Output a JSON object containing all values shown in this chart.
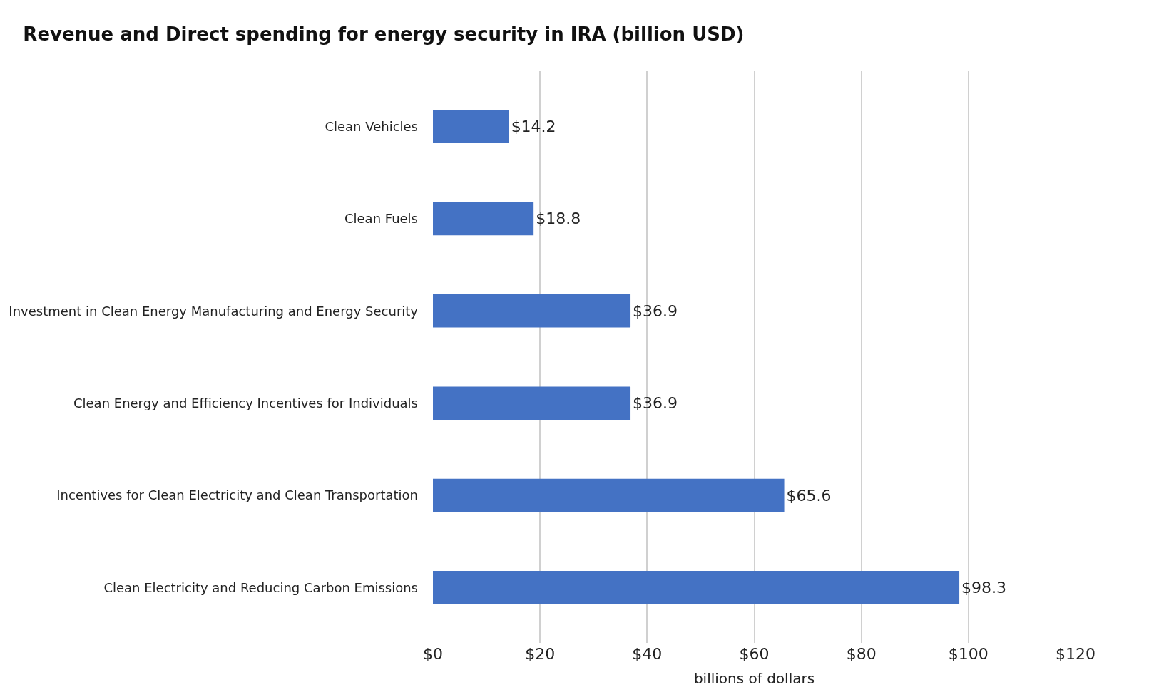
{
  "chart_data": {
    "type": "bar",
    "orientation": "horizontal",
    "title": "Revenue and Direct spending for energy security in IRA (billion USD)",
    "xlabel": "billions of dollars",
    "categories": [
      "Clean Vehicles",
      "Clean Fuels",
      "Investment in Clean Energy Manufacturing and Energy Security",
      "Clean Energy and Efficiency Incentives for Individuals",
      "Incentives for Clean Electricity and Clean Transportation",
      "Clean Electricity and Reducing Carbon Emissions"
    ],
    "values": [
      14.2,
      18.8,
      36.9,
      36.9,
      65.6,
      98.3
    ],
    "value_labels": [
      "$14.2",
      "$18.8",
      "$36.9",
      "$36.9",
      "$65.6",
      "$98.3"
    ],
    "color": "#4472c4",
    "xlim": [
      0,
      120
    ],
    "xticks": [
      {
        "value": 0,
        "label": "$0"
      },
      {
        "value": 20,
        "label": "$20"
      },
      {
        "value": 40,
        "label": "$40"
      },
      {
        "value": 60,
        "label": "$60"
      },
      {
        "value": 80,
        "label": "$80"
      },
      {
        "value": 100,
        "label": "$100"
      },
      {
        "value": 120,
        "label": "$120"
      }
    ],
    "grid": "x",
    "legend": false
  }
}
